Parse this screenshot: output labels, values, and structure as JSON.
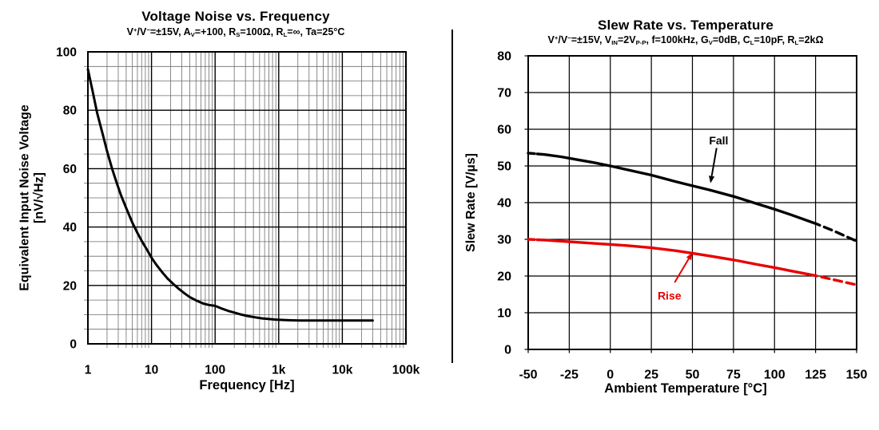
{
  "figure": {
    "background": "#ffffff",
    "divider_color": "#000000"
  },
  "chart_data": [
    {
      "type": "line",
      "name": "voltage-noise-vs-frequency",
      "title": "Voltage Noise vs. Frequency",
      "subtitle": "V+/V-=±15V, AV=+100, RS=100Ω, RL=∞, Ta=25°C",
      "subtitle_segments": [
        {
          "t": "V"
        },
        {
          "t": "+",
          "s": "sup"
        },
        {
          "t": "/V"
        },
        {
          "t": "−",
          "s": "sup"
        },
        {
          "t": "=±15V, A"
        },
        {
          "t": "V",
          "s": "subx"
        },
        {
          "t": "=+100, R"
        },
        {
          "t": "S",
          "s": "subx"
        },
        {
          "t": "=100Ω, R"
        },
        {
          "t": "L",
          "s": "subx"
        },
        {
          "t": "=∞, Ta=25°C"
        }
      ],
      "xlabel": "Frequency [Hz]",
      "ylabel": [
        "Equivalent Input Noise Voltage",
        "[nV/√Hz]"
      ],
      "x_scale": "log",
      "xlim": [
        1,
        100000
      ],
      "ylim": [
        0,
        100
      ],
      "x_ticks": [
        {
          "value": 1,
          "label": "1"
        },
        {
          "value": 10,
          "label": "10"
        },
        {
          "value": 100,
          "label": "100"
        },
        {
          "value": 1000,
          "label": "1k"
        },
        {
          "value": 10000,
          "label": "10k"
        },
        {
          "value": 100000,
          "label": "100k"
        }
      ],
      "y_ticks": [
        {
          "value": 0,
          "label": "0"
        },
        {
          "value": 20,
          "label": "20"
        },
        {
          "value": 40,
          "label": "40"
        },
        {
          "value": 60,
          "label": "60"
        },
        {
          "value": 80,
          "label": "80"
        },
        {
          "value": 100,
          "label": "100"
        }
      ],
      "y_major_step": 20,
      "y_minor_step": 5,
      "grid": {
        "major": true,
        "minor": true,
        "major_color": "#000000",
        "minor_color": "#6e6e6e"
      },
      "series": [
        {
          "name": "equivalent-input-noise",
          "color": "#000000",
          "style": "solid",
          "points": [
            [
              1,
              94
            ],
            [
              1.2,
              86
            ],
            [
              1.4,
              79
            ],
            [
              1.7,
              72
            ],
            [
              2,
              66
            ],
            [
              2.4,
              60
            ],
            [
              2.8,
              55.5
            ],
            [
              3.3,
              51
            ],
            [
              4,
              46.5
            ],
            [
              5,
              41.5
            ],
            [
              6,
              38
            ],
            [
              7,
              35.3
            ],
            [
              8.5,
              32.2
            ],
            [
              10,
              29.5
            ],
            [
              12,
              27
            ],
            [
              15,
              24.3
            ],
            [
              18,
              22.3
            ],
            [
              22,
              20.5
            ],
            [
              27,
              18.8
            ],
            [
              33,
              17.3
            ],
            [
              40,
              16
            ],
            [
              50,
              14.9
            ],
            [
              65,
              13.8
            ],
            [
              80,
              13.3
            ],
            [
              100,
              13
            ],
            [
              130,
              12
            ],
            [
              160,
              11.3
            ],
            [
              200,
              10.7
            ],
            [
              260,
              10
            ],
            [
              330,
              9.5
            ],
            [
              420,
              9.1
            ],
            [
              550,
              8.7
            ],
            [
              700,
              8.5
            ],
            [
              900,
              8.3
            ],
            [
              1200,
              8.15
            ],
            [
              1600,
              8.05
            ],
            [
              2200,
              8
            ],
            [
              3000,
              8
            ],
            [
              5000,
              8
            ],
            [
              8000,
              8
            ],
            [
              12000,
              8
            ],
            [
              20000,
              8
            ],
            [
              30000,
              8
            ]
          ]
        }
      ],
      "annotations": []
    },
    {
      "type": "line",
      "name": "slew-rate-vs-temperature",
      "title": "Slew Rate vs. Temperature",
      "subtitle": "V+/V-=±15V, VIN=2VP-P, f=100kHz, GV=0dB, CL=10pF, RL=2kΩ",
      "subtitle_segments": [
        {
          "t": "V"
        },
        {
          "t": "+",
          "s": "sup"
        },
        {
          "t": "/V"
        },
        {
          "t": "−",
          "s": "sup"
        },
        {
          "t": "=±15V, V"
        },
        {
          "t": "IN",
          "s": "subx"
        },
        {
          "t": "=2V"
        },
        {
          "t": "P-P",
          "s": "subx"
        },
        {
          "t": ", f=100kHz, G"
        },
        {
          "t": "V",
          "s": "subx"
        },
        {
          "t": "=0dB, C"
        },
        {
          "t": "L",
          "s": "subx"
        },
        {
          "t": "=10pF, R"
        },
        {
          "t": "L",
          "s": "subx"
        },
        {
          "t": "=2kΩ"
        }
      ],
      "xlabel": "Ambient Temperature [°C]",
      "ylabel": "Slew Rate [V/µs]",
      "x_scale": "linear",
      "xlim": [
        -50,
        150
      ],
      "ylim": [
        0,
        80
      ],
      "x_ticks": [
        {
          "value": -50,
          "label": "-50"
        },
        {
          "value": -25,
          "label": "-25"
        },
        {
          "value": 0,
          "label": "0"
        },
        {
          "value": 25,
          "label": "25"
        },
        {
          "value": 50,
          "label": "50"
        },
        {
          "value": 75,
          "label": "75"
        },
        {
          "value": 100,
          "label": "100"
        },
        {
          "value": 125,
          "label": "125"
        },
        {
          "value": 150,
          "label": "150"
        }
      ],
      "y_ticks": [
        {
          "value": 0,
          "label": "0"
        },
        {
          "value": 10,
          "label": "10"
        },
        {
          "value": 20,
          "label": "20"
        },
        {
          "value": 30,
          "label": "30"
        },
        {
          "value": 40,
          "label": "40"
        },
        {
          "value": 50,
          "label": "50"
        },
        {
          "value": 60,
          "label": "60"
        },
        {
          "value": 70,
          "label": "70"
        },
        {
          "value": 80,
          "label": "80"
        }
      ],
      "y_major_step": 10,
      "grid": {
        "major": true,
        "minor": false,
        "major_color": "#000000"
      },
      "series": [
        {
          "name": "Fall",
          "color": "#000000",
          "dash_until": -44.5,
          "dash_from": 123,
          "points": [
            [
              -50,
              53.5
            ],
            [
              -40,
              53.1
            ],
            [
              -30,
              52.5
            ],
            [
              -20,
              51.7
            ],
            [
              -10,
              50.9
            ],
            [
              0,
              50
            ],
            [
              10,
              49
            ],
            [
              25,
              47.5
            ],
            [
              40,
              45.7
            ],
            [
              50,
              44.6
            ],
            [
              60,
              43.5
            ],
            [
              75,
              41.7
            ],
            [
              90,
              39.6
            ],
            [
              100,
              38.2
            ],
            [
              110,
              36.7
            ],
            [
              125,
              34.3
            ],
            [
              135,
              32.5
            ],
            [
              150,
              29.5
            ]
          ]
        },
        {
          "name": "Rise",
          "color": "#e80000",
          "dash_until": -44.5,
          "dash_from": 121,
          "points": [
            [
              -50,
              30
            ],
            [
              -40,
              29.8
            ],
            [
              -30,
              29.5
            ],
            [
              -20,
              29.2
            ],
            [
              -10,
              28.9
            ],
            [
              0,
              28.6
            ],
            [
              10,
              28.3
            ],
            [
              25,
              27.7
            ],
            [
              40,
              26.9
            ],
            [
              50,
              26.2
            ],
            [
              60,
              25.5
            ],
            [
              75,
              24.4
            ],
            [
              90,
              23.1
            ],
            [
              100,
              22.3
            ],
            [
              110,
              21.4
            ],
            [
              125,
              20.1
            ],
            [
              135,
              19.1
            ],
            [
              150,
              17.6
            ]
          ]
        }
      ],
      "annotations": [
        {
          "text": "Fall",
          "color": "#000000",
          "label_x": 66,
          "label_y": 57,
          "tip_x": 61,
          "tip_y": 45.3
        },
        {
          "text": "Rise",
          "color": "#e80000",
          "label_x": 36,
          "label_y": 14.7,
          "tip_x": 50,
          "tip_y": 26.4
        }
      ]
    }
  ]
}
